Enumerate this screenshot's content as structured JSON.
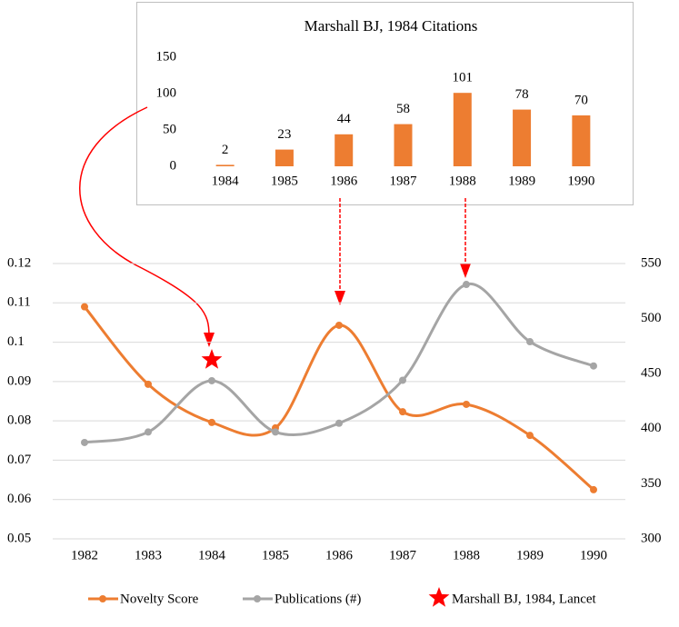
{
  "chart_data": [
    {
      "type": "bar",
      "title": "Marshall BJ, 1984 Citations",
      "categories": [
        "1984",
        "1985",
        "1986",
        "1987",
        "1988",
        "1989",
        "1990"
      ],
      "values": [
        2,
        23,
        44,
        58,
        101,
        78,
        70
      ],
      "color": "#ed7d31",
      "ylim": [
        0,
        150
      ],
      "yticks": [
        0,
        50,
        100,
        150
      ]
    },
    {
      "type": "line",
      "categories": [
        "1982",
        "1983",
        "1984",
        "1985",
        "1986",
        "1987",
        "1988",
        "1989",
        "1990"
      ],
      "series": [
        {
          "name": "Novelty Score",
          "color": "#ed7d31",
          "values": [
            0.109,
            0.0893,
            0.0796,
            0.0782,
            0.1043,
            0.0823,
            0.0842,
            0.0763,
            0.0625
          ]
        },
        {
          "name": "Publications (#)",
          "color": "#a5a5a5",
          "axis": "y2",
          "values": [
            387.5,
            397,
            443.6,
            397,
            405,
            444,
            531,
            479,
            457
          ]
        }
      ],
      "ylim": [
        0.05,
        0.12
      ],
      "yticks": [
        0.05,
        0.06,
        0.07,
        0.08,
        0.09,
        0.1,
        0.11,
        0.12
      ],
      "y2lim": [
        300,
        550
      ],
      "y2ticks": [
        300,
        350,
        400,
        450,
        500,
        550
      ],
      "grid": true,
      "marker": {
        "name": "Marshall BJ, 1984, Lancet",
        "x": "1984",
        "value": 0.0955,
        "color": "#ff0000"
      }
    }
  ]
}
